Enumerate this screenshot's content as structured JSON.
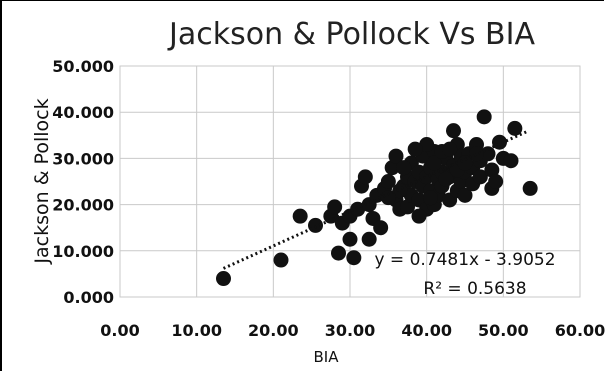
{
  "chart_data": {
    "type": "scatter",
    "title": "Jackson & Pollock Vs BIA",
    "xlabel": "BIA",
    "ylabel": "Jackson & Pollock",
    "xlim": [
      0,
      60
    ],
    "ylim": [
      0,
      50
    ],
    "x_tick_labels": [
      "0.00",
      "10.00",
      "20.00",
      "30.00",
      "40.00",
      "50.00",
      "60.00"
    ],
    "y_tick_labels": [
      "0.000",
      "10.000",
      "20.000",
      "30.000",
      "40.000",
      "50.000"
    ],
    "grid": true,
    "legend": "none",
    "marker_color": "#111111",
    "trendline": {
      "slope": 0.7481,
      "intercept": -3.9052,
      "style": "dotted",
      "x_range": [
        13.5,
        53
      ]
    },
    "equation_label": "y = 0.7481x - 3.9052",
    "r2_label": "R² = 0.5638",
    "points": [
      [
        13.5,
        4
      ],
      [
        21,
        8
      ],
      [
        28.5,
        9.5
      ],
      [
        30,
        12.5
      ],
      [
        30.5,
        8.5
      ],
      [
        32.5,
        12.5
      ],
      [
        23.5,
        17.5
      ],
      [
        25.5,
        15.5
      ],
      [
        27.5,
        17.5
      ],
      [
        28,
        19.5
      ],
      [
        29,
        16
      ],
      [
        30,
        17.5
      ],
      [
        31,
        19
      ],
      [
        31.5,
        24
      ],
      [
        32,
        26
      ],
      [
        32.5,
        20
      ],
      [
        33,
        17
      ],
      [
        33.5,
        22
      ],
      [
        34,
        15
      ],
      [
        34.5,
        23.5
      ],
      [
        35,
        25
      ],
      [
        35.5,
        28
      ],
      [
        36,
        21
      ],
      [
        36.5,
        19
      ],
      [
        36,
        30.5
      ],
      [
        37,
        24
      ],
      [
        37.5,
        26
      ],
      [
        37.5,
        19.5
      ],
      [
        38,
        22
      ],
      [
        38,
        29
      ],
      [
        38.5,
        25
      ],
      [
        39,
        27
      ],
      [
        39,
        21
      ],
      [
        39.5,
        24
      ],
      [
        39.5,
        30.5
      ],
      [
        40,
        19
      ],
      [
        40,
        26
      ],
      [
        40.5,
        23
      ],
      [
        40.5,
        28
      ],
      [
        41,
        20
      ],
      [
        41,
        31.5
      ],
      [
        41.5,
        25.5
      ],
      [
        41.5,
        22
      ],
      [
        42,
        27
      ],
      [
        42,
        24
      ],
      [
        42.5,
        30
      ],
      [
        43,
        21
      ],
      [
        43,
        26
      ],
      [
        43.5,
        28.5
      ],
      [
        43.5,
        36
      ],
      [
        44,
        23
      ],
      [
        44,
        33
      ],
      [
        44.5,
        25
      ],
      [
        44.5,
        30.5
      ],
      [
        45,
        27
      ],
      [
        45,
        22
      ],
      [
        45.5,
        31
      ],
      [
        46,
        28
      ],
      [
        46,
        24.5
      ],
      [
        46.5,
        33
      ],
      [
        47,
        26
      ],
      [
        47,
        29.5
      ],
      [
        47.5,
        39
      ],
      [
        48,
        31
      ],
      [
        48.5,
        23.5
      ],
      [
        48.5,
        27.5
      ],
      [
        49,
        25
      ],
      [
        49.5,
        33.5
      ],
      [
        50,
        30
      ],
      [
        51,
        29.5
      ],
      [
        51.5,
        36.5
      ],
      [
        53.5,
        23.5
      ],
      [
        39,
        17.5
      ],
      [
        40,
        33
      ],
      [
        41,
        29
      ],
      [
        42,
        31.5
      ],
      [
        43,
        32
      ],
      [
        44,
        27.5
      ],
      [
        45,
        29
      ],
      [
        46.5,
        31
      ],
      [
        37,
        28
      ],
      [
        38.5,
        32
      ],
      [
        36.5,
        23
      ],
      [
        35,
        21.5
      ],
      [
        40.5,
        21.5
      ],
      [
        42.5,
        25.5
      ]
    ]
  }
}
